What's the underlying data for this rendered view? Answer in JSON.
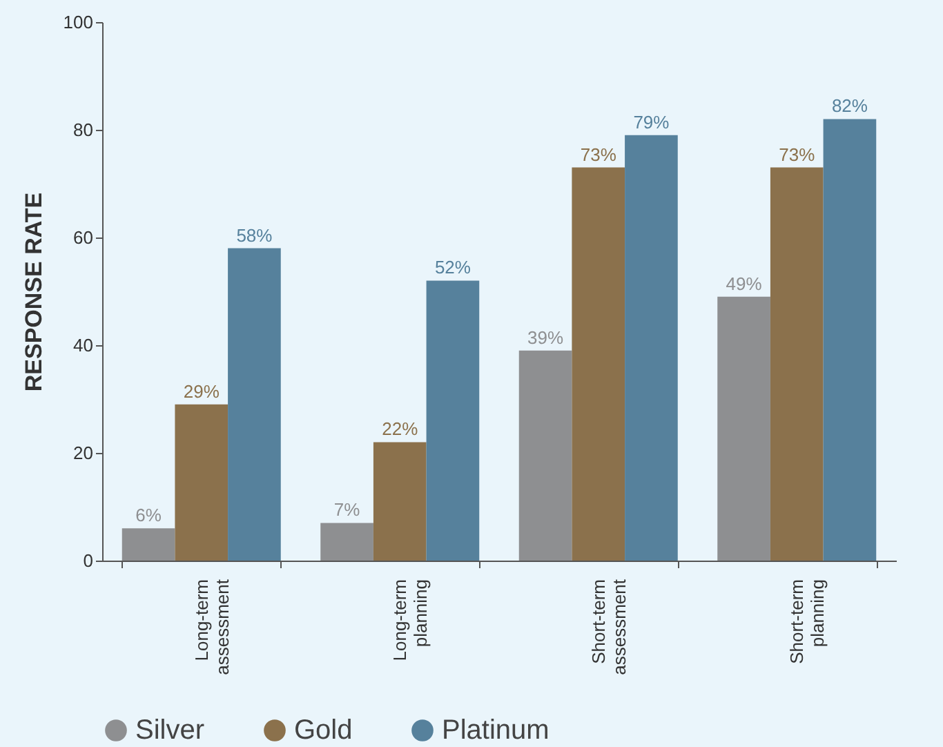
{
  "chart_data": {
    "type": "bar",
    "ylabel": "RESPONSE RATE",
    "categories": [
      "Long-term assessment",
      "Long-term planning",
      "Short-term assessment",
      "Short-term planning"
    ],
    "series": [
      {
        "name": "Silver",
        "color": "#8e8f91",
        "values": [
          6,
          7,
          39,
          49
        ],
        "value_labels": [
          "6%",
          "7%",
          "39%",
          "49%"
        ]
      },
      {
        "name": "Gold",
        "color": "#8b714c",
        "values": [
          29,
          22,
          73,
          73
        ],
        "value_labels": [
          "29%",
          "22%",
          "73%",
          "73%"
        ]
      },
      {
        "name": "Platinum",
        "color": "#56819c",
        "values": [
          58,
          52,
          79,
          82
        ],
        "value_labels": [
          "58%",
          "52%",
          "79%",
          "82%"
        ]
      }
    ],
    "ylim": [
      0,
      100
    ],
    "yticks": [
      0,
      20,
      40,
      60,
      80,
      100
    ],
    "grid": false,
    "legend": "bottom"
  }
}
